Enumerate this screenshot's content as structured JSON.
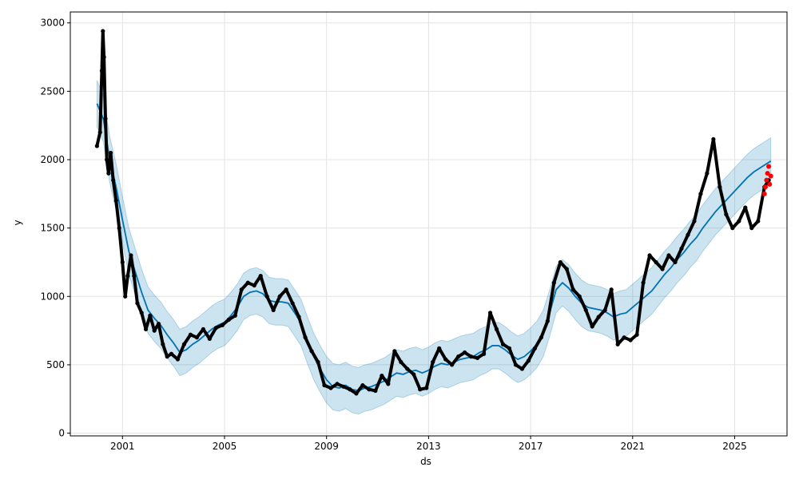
{
  "chart_data": {
    "type": "line",
    "title": "",
    "xlabel": "ds",
    "ylabel": "y",
    "xlim": [
      "1998-12-15",
      "2027-01-20"
    ],
    "ylim": [
      -20,
      3080
    ],
    "grid": true,
    "x_ticks": [
      "2001",
      "2005",
      "2009",
      "2013",
      "2017",
      "2021",
      "2025"
    ],
    "y_ticks": [
      "0",
      "500",
      "1000",
      "1500",
      "2000",
      "2500",
      "3000"
    ],
    "colors": {
      "observed": "#000000",
      "forecast": "#0072B2",
      "interval": "#0072B2",
      "highlight": "#ff0000",
      "grid": "#e3e3e3"
    },
    "series": [
      {
        "kind": "observed",
        "points": [
          [
            "2000-01-01",
            2100
          ],
          [
            "2000-02-15",
            2200
          ],
          [
            "2000-03-10",
            2650
          ],
          [
            "2000-03-25",
            2940
          ],
          [
            "2000-04-10",
            2750
          ],
          [
            "2000-05-01",
            2300
          ],
          [
            "2000-05-20",
            2000
          ],
          [
            "2000-06-15",
            1900
          ],
          [
            "2000-07-15",
            2050
          ],
          [
            "2000-08-20",
            1850
          ],
          [
            "2000-10-01",
            1700
          ],
          [
            "2000-11-15",
            1500
          ],
          [
            "2001-01-01",
            1250
          ],
          [
            "2001-02-10",
            1000
          ],
          [
            "2001-03-15",
            1150
          ],
          [
            "2001-05-01",
            1300
          ],
          [
            "2001-06-15",
            1150
          ],
          [
            "2001-08-01",
            950
          ],
          [
            "2001-10-01",
            880
          ],
          [
            "2001-12-01",
            760
          ],
          [
            "2002-02-01",
            860
          ],
          [
            "2002-04-01",
            750
          ],
          [
            "2002-06-01",
            800
          ],
          [
            "2002-08-01",
            650
          ],
          [
            "2002-10-01",
            560
          ],
          [
            "2002-12-01",
            580
          ],
          [
            "2003-03-01",
            540
          ],
          [
            "2003-06-01",
            650
          ],
          [
            "2003-09-01",
            720
          ],
          [
            "2003-12-01",
            700
          ],
          [
            "2004-03-01",
            760
          ],
          [
            "2004-06-01",
            690
          ],
          [
            "2004-09-01",
            770
          ],
          [
            "2004-12-01",
            790
          ],
          [
            "2005-03-01",
            830
          ],
          [
            "2005-06-01",
            860
          ],
          [
            "2005-09-01",
            1050
          ],
          [
            "2005-12-01",
            1100
          ],
          [
            "2006-03-01",
            1080
          ],
          [
            "2006-06-01",
            1150
          ],
          [
            "2006-09-01",
            1000
          ],
          [
            "2006-12-01",
            900
          ],
          [
            "2007-03-01",
            1000
          ],
          [
            "2007-06-01",
            1050
          ],
          [
            "2007-09-01",
            950
          ],
          [
            "2007-12-01",
            850
          ],
          [
            "2008-03-01",
            700
          ],
          [
            "2008-06-01",
            600
          ],
          [
            "2008-09-01",
            520
          ],
          [
            "2008-12-01",
            350
          ],
          [
            "2009-03-01",
            330
          ],
          [
            "2009-06-01",
            360
          ],
          [
            "2009-09-01",
            340
          ],
          [
            "2009-12-01",
            320
          ],
          [
            "2010-03-01",
            290
          ],
          [
            "2010-06-01",
            350
          ],
          [
            "2010-09-01",
            320
          ],
          [
            "2010-12-01",
            310
          ],
          [
            "2011-03-01",
            420
          ],
          [
            "2011-06-01",
            360
          ],
          [
            "2011-09-01",
            600
          ],
          [
            "2011-12-01",
            520
          ],
          [
            "2012-03-01",
            470
          ],
          [
            "2012-06-01",
            430
          ],
          [
            "2012-09-01",
            320
          ],
          [
            "2012-12-01",
            330
          ],
          [
            "2013-03-01",
            520
          ],
          [
            "2013-06-01",
            620
          ],
          [
            "2013-09-01",
            540
          ],
          [
            "2013-12-01",
            500
          ],
          [
            "2014-03-01",
            560
          ],
          [
            "2014-06-01",
            590
          ],
          [
            "2014-09-01",
            560
          ],
          [
            "2014-12-01",
            550
          ],
          [
            "2015-03-01",
            580
          ],
          [
            "2015-06-01",
            880
          ],
          [
            "2015-09-01",
            760
          ],
          [
            "2015-12-01",
            650
          ],
          [
            "2016-03-01",
            620
          ],
          [
            "2016-06-01",
            500
          ],
          [
            "2016-09-01",
            470
          ],
          [
            "2016-12-01",
            530
          ],
          [
            "2017-03-01",
            620
          ],
          [
            "2017-06-01",
            700
          ],
          [
            "2017-09-01",
            820
          ],
          [
            "2017-12-01",
            1100
          ],
          [
            "2018-03-01",
            1250
          ],
          [
            "2018-06-01",
            1200
          ],
          [
            "2018-09-01",
            1050
          ],
          [
            "2018-12-01",
            1000
          ],
          [
            "2019-03-01",
            900
          ],
          [
            "2019-06-01",
            780
          ],
          [
            "2019-09-01",
            850
          ],
          [
            "2019-12-01",
            900
          ],
          [
            "2020-03-01",
            1050
          ],
          [
            "2020-06-01",
            650
          ],
          [
            "2020-09-01",
            700
          ],
          [
            "2020-12-01",
            680
          ],
          [
            "2021-03-01",
            720
          ],
          [
            "2021-06-01",
            1100
          ],
          [
            "2021-09-01",
            1300
          ],
          [
            "2021-12-01",
            1250
          ],
          [
            "2022-03-01",
            1200
          ],
          [
            "2022-06-01",
            1300
          ],
          [
            "2022-09-01",
            1250
          ],
          [
            "2022-12-01",
            1350
          ],
          [
            "2023-03-01",
            1450
          ],
          [
            "2023-06-01",
            1550
          ],
          [
            "2023-09-01",
            1750
          ],
          [
            "2023-12-01",
            1900
          ],
          [
            "2024-03-01",
            2150
          ],
          [
            "2024-06-01",
            1800
          ],
          [
            "2024-09-01",
            1600
          ],
          [
            "2024-12-01",
            1500
          ],
          [
            "2025-03-01",
            1550
          ],
          [
            "2025-06-01",
            1650
          ],
          [
            "2025-09-01",
            1500
          ],
          [
            "2025-12-01",
            1550
          ],
          [
            "2026-03-01",
            1800
          ],
          [
            "2026-05-01",
            1850
          ]
        ]
      },
      {
        "kind": "forecast",
        "points": [
          [
            "2000-01-01",
            2410
          ],
          [
            "2000-04-01",
            2300
          ],
          [
            "2000-07-01",
            2000
          ],
          [
            "2000-10-01",
            1800
          ],
          [
            "2001-01-01",
            1560
          ],
          [
            "2001-04-01",
            1330
          ],
          [
            "2001-07-01",
            1180
          ],
          [
            "2001-10-01",
            1030
          ],
          [
            "2002-01-01",
            900
          ],
          [
            "2002-04-01",
            840
          ],
          [
            "2002-07-01",
            790
          ],
          [
            "2002-10-01",
            720
          ],
          [
            "2003-01-01",
            660
          ],
          [
            "2003-04-01",
            590
          ],
          [
            "2003-07-01",
            610
          ],
          [
            "2003-10-01",
            650
          ],
          [
            "2004-01-01",
            680
          ],
          [
            "2004-04-01",
            720
          ],
          [
            "2004-07-01",
            760
          ],
          [
            "2004-10-01",
            790
          ],
          [
            "2005-01-01",
            810
          ],
          [
            "2005-04-01",
            860
          ],
          [
            "2005-07-01",
            920
          ],
          [
            "2005-10-01",
            1000
          ],
          [
            "2006-01-01",
            1030
          ],
          [
            "2006-04-01",
            1040
          ],
          [
            "2006-07-01",
            1020
          ],
          [
            "2006-10-01",
            970
          ],
          [
            "2007-01-01",
            960
          ],
          [
            "2007-04-01",
            960
          ],
          [
            "2007-07-01",
            950
          ],
          [
            "2007-10-01",
            880
          ],
          [
            "2008-01-01",
            810
          ],
          [
            "2008-04-01",
            680
          ],
          [
            "2008-07-01",
            560
          ],
          [
            "2008-10-01",
            470
          ],
          [
            "2009-01-01",
            390
          ],
          [
            "2009-04-01",
            340
          ],
          [
            "2009-07-01",
            330
          ],
          [
            "2009-10-01",
            350
          ],
          [
            "2010-01-01",
            320
          ],
          [
            "2010-04-01",
            310
          ],
          [
            "2010-07-01",
            330
          ],
          [
            "2010-10-01",
            340
          ],
          [
            "2011-01-01",
            360
          ],
          [
            "2011-04-01",
            380
          ],
          [
            "2011-07-01",
            410
          ],
          [
            "2011-10-01",
            440
          ],
          [
            "2012-01-01",
            430
          ],
          [
            "2012-04-01",
            450
          ],
          [
            "2012-07-01",
            460
          ],
          [
            "2012-10-01",
            440
          ],
          [
            "2013-01-01",
            460
          ],
          [
            "2013-04-01",
            490
          ],
          [
            "2013-07-01",
            510
          ],
          [
            "2013-10-01",
            500
          ],
          [
            "2014-01-01",
            520
          ],
          [
            "2014-04-01",
            540
          ],
          [
            "2014-07-01",
            550
          ],
          [
            "2014-10-01",
            560
          ],
          [
            "2015-01-01",
            590
          ],
          [
            "2015-04-01",
            610
          ],
          [
            "2015-07-01",
            640
          ],
          [
            "2015-10-01",
            640
          ],
          [
            "2016-01-01",
            610
          ],
          [
            "2016-04-01",
            570
          ],
          [
            "2016-07-01",
            540
          ],
          [
            "2016-10-01",
            560
          ],
          [
            "2017-01-01",
            600
          ],
          [
            "2017-04-01",
            650
          ],
          [
            "2017-07-01",
            730
          ],
          [
            "2017-10-01",
            880
          ],
          [
            "2018-01-01",
            1050
          ],
          [
            "2018-04-01",
            1100
          ],
          [
            "2018-07-01",
            1060
          ],
          [
            "2018-10-01",
            1000
          ],
          [
            "2019-01-01",
            950
          ],
          [
            "2019-04-01",
            920
          ],
          [
            "2019-07-01",
            910
          ],
          [
            "2019-10-01",
            900
          ],
          [
            "2020-01-01",
            880
          ],
          [
            "2020-04-01",
            850
          ],
          [
            "2020-07-01",
            870
          ],
          [
            "2020-10-01",
            880
          ],
          [
            "2021-01-01",
            920
          ],
          [
            "2021-04-01",
            960
          ],
          [
            "2021-07-01",
            1000
          ],
          [
            "2021-10-01",
            1040
          ],
          [
            "2022-01-01",
            1100
          ],
          [
            "2022-04-01",
            1160
          ],
          [
            "2022-07-01",
            1210
          ],
          [
            "2022-10-01",
            1270
          ],
          [
            "2023-01-01",
            1320
          ],
          [
            "2023-04-01",
            1380
          ],
          [
            "2023-07-01",
            1430
          ],
          [
            "2023-10-01",
            1500
          ],
          [
            "2024-01-01",
            1560
          ],
          [
            "2024-04-01",
            1620
          ],
          [
            "2024-07-01",
            1670
          ],
          [
            "2024-10-01",
            1720
          ],
          [
            "2025-01-01",
            1770
          ],
          [
            "2025-04-01",
            1820
          ],
          [
            "2025-07-01",
            1870
          ],
          [
            "2025-10-01",
            1910
          ],
          [
            "2026-01-01",
            1940
          ],
          [
            "2026-04-01",
            1970
          ],
          [
            "2026-06-01",
            1990
          ]
        ],
        "interval_half_width": 170
      },
      {
        "kind": "highlight",
        "points": [
          [
            "2026-03-01",
            1750
          ],
          [
            "2026-03-15",
            1800
          ],
          [
            "2026-04-01",
            1850
          ],
          [
            "2026-04-15",
            1900
          ],
          [
            "2026-05-01",
            1950
          ],
          [
            "2026-05-15",
            1820
          ],
          [
            "2026-06-01",
            1880
          ]
        ]
      }
    ]
  }
}
